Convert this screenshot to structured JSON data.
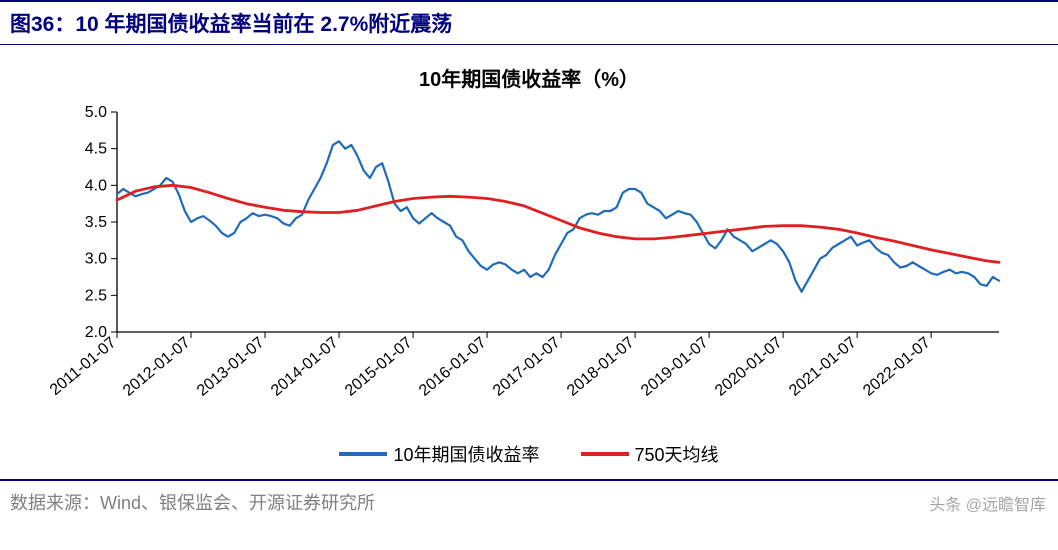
{
  "header": {
    "title": "图36：10 年期国债收益率当前在 2.7%附近震荡"
  },
  "chart": {
    "type": "line",
    "title": "10年期国债收益率（%）",
    "title_fontsize": 20,
    "background_color": "#ffffff",
    "axis_color": "#000000",
    "axis_width": 1.3,
    "ylabel": "",
    "ylim": [
      2.0,
      5.0
    ],
    "yticks": [
      2.0,
      2.5,
      3.0,
      3.5,
      4.0,
      4.5,
      5.0
    ],
    "ytick_labels": [
      "2.0",
      "2.5",
      "3.0",
      "3.5",
      "4.0",
      "4.5",
      "5.0"
    ],
    "xticks": [
      0,
      12,
      24,
      36,
      48,
      60,
      72,
      84,
      96,
      108,
      120,
      132
    ],
    "xtick_labels": [
      "2011-01-07",
      "2012-01-07",
      "2013-01-07",
      "2014-01-07",
      "2015-01-07",
      "2016-01-07",
      "2017-01-07",
      "2018-01-07",
      "2019-01-07",
      "2020-01-07",
      "2021-01-07",
      "2022-01-07"
    ],
    "xlim": [
      0,
      143
    ],
    "tick_fontsize": 16,
    "series": [
      {
        "name": "10年期国债收益率",
        "color": "#1f6bb8",
        "line_width": 2.2,
        "data": [
          [
            0,
            3.88
          ],
          [
            1,
            3.95
          ],
          [
            2,
            3.9
          ],
          [
            3,
            3.85
          ],
          [
            4,
            3.88
          ],
          [
            5,
            3.9
          ],
          [
            6,
            3.95
          ],
          [
            7,
            4.0
          ],
          [
            8,
            4.1
          ],
          [
            9,
            4.05
          ],
          [
            10,
            3.88
          ],
          [
            11,
            3.65
          ],
          [
            12,
            3.5
          ],
          [
            13,
            3.55
          ],
          [
            14,
            3.58
          ],
          [
            15,
            3.52
          ],
          [
            16,
            3.45
          ],
          [
            17,
            3.35
          ],
          [
            18,
            3.3
          ],
          [
            19,
            3.35
          ],
          [
            20,
            3.5
          ],
          [
            21,
            3.55
          ],
          [
            22,
            3.62
          ],
          [
            23,
            3.58
          ],
          [
            24,
            3.6
          ],
          [
            25,
            3.58
          ],
          [
            26,
            3.55
          ],
          [
            27,
            3.48
          ],
          [
            28,
            3.45
          ],
          [
            29,
            3.55
          ],
          [
            30,
            3.6
          ],
          [
            31,
            3.8
          ],
          [
            32,
            3.95
          ],
          [
            33,
            4.1
          ],
          [
            34,
            4.3
          ],
          [
            35,
            4.55
          ],
          [
            36,
            4.6
          ],
          [
            37,
            4.5
          ],
          [
            38,
            4.55
          ],
          [
            39,
            4.4
          ],
          [
            40,
            4.2
          ],
          [
            41,
            4.1
          ],
          [
            42,
            4.25
          ],
          [
            43,
            4.3
          ],
          [
            44,
            4.05
          ],
          [
            45,
            3.75
          ],
          [
            46,
            3.65
          ],
          [
            47,
            3.7
          ],
          [
            48,
            3.55
          ],
          [
            49,
            3.48
          ],
          [
            50,
            3.55
          ],
          [
            51,
            3.62
          ],
          [
            52,
            3.55
          ],
          [
            53,
            3.5
          ],
          [
            54,
            3.45
          ],
          [
            55,
            3.3
          ],
          [
            56,
            3.25
          ],
          [
            57,
            3.1
          ],
          [
            58,
            3.0
          ],
          [
            59,
            2.9
          ],
          [
            60,
            2.85
          ],
          [
            61,
            2.92
          ],
          [
            62,
            2.95
          ],
          [
            63,
            2.92
          ],
          [
            64,
            2.85
          ],
          [
            65,
            2.8
          ],
          [
            66,
            2.85
          ],
          [
            67,
            2.75
          ],
          [
            68,
            2.8
          ],
          [
            69,
            2.75
          ],
          [
            70,
            2.85
          ],
          [
            71,
            3.05
          ],
          [
            72,
            3.2
          ],
          [
            73,
            3.35
          ],
          [
            74,
            3.4
          ],
          [
            75,
            3.55
          ],
          [
            76,
            3.6
          ],
          [
            77,
            3.62
          ],
          [
            78,
            3.6
          ],
          [
            79,
            3.65
          ],
          [
            80,
            3.65
          ],
          [
            81,
            3.7
          ],
          [
            82,
            3.9
          ],
          [
            83,
            3.95
          ],
          [
            84,
            3.95
          ],
          [
            85,
            3.9
          ],
          [
            86,
            3.75
          ],
          [
            87,
            3.7
          ],
          [
            88,
            3.65
          ],
          [
            89,
            3.55
          ],
          [
            90,
            3.6
          ],
          [
            91,
            3.65
          ],
          [
            92,
            3.62
          ],
          [
            93,
            3.6
          ],
          [
            94,
            3.5
          ],
          [
            95,
            3.35
          ],
          [
            96,
            3.2
          ],
          [
            97,
            3.14
          ],
          [
            98,
            3.25
          ],
          [
            99,
            3.4
          ],
          [
            100,
            3.3
          ],
          [
            101,
            3.25
          ],
          [
            102,
            3.2
          ],
          [
            103,
            3.1
          ],
          [
            104,
            3.15
          ],
          [
            105,
            3.2
          ],
          [
            106,
            3.25
          ],
          [
            107,
            3.2
          ],
          [
            108,
            3.1
          ],
          [
            109,
            2.95
          ],
          [
            110,
            2.7
          ],
          [
            111,
            2.55
          ],
          [
            112,
            2.7
          ],
          [
            113,
            2.85
          ],
          [
            114,
            3.0
          ],
          [
            115,
            3.05
          ],
          [
            116,
            3.15
          ],
          [
            117,
            3.2
          ],
          [
            118,
            3.25
          ],
          [
            119,
            3.3
          ],
          [
            120,
            3.18
          ],
          [
            121,
            3.22
          ],
          [
            122,
            3.25
          ],
          [
            123,
            3.15
          ],
          [
            124,
            3.08
          ],
          [
            125,
            3.05
          ],
          [
            126,
            2.95
          ],
          [
            127,
            2.88
          ],
          [
            128,
            2.9
          ],
          [
            129,
            2.95
          ],
          [
            130,
            2.9
          ],
          [
            131,
            2.85
          ],
          [
            132,
            2.8
          ],
          [
            133,
            2.78
          ],
          [
            134,
            2.82
          ],
          [
            135,
            2.85
          ],
          [
            136,
            2.8
          ],
          [
            137,
            2.82
          ],
          [
            138,
            2.8
          ],
          [
            139,
            2.75
          ],
          [
            140,
            2.65
          ],
          [
            141,
            2.63
          ],
          [
            142,
            2.75
          ],
          [
            143,
            2.7
          ]
        ]
      },
      {
        "name": "750天均线",
        "color": "#e02020",
        "line_width": 2.8,
        "data": [
          [
            0,
            3.8
          ],
          [
            3,
            3.92
          ],
          [
            6,
            3.98
          ],
          [
            9,
            4.0
          ],
          [
            12,
            3.97
          ],
          [
            15,
            3.9
          ],
          [
            18,
            3.82
          ],
          [
            21,
            3.75
          ],
          [
            24,
            3.7
          ],
          [
            27,
            3.66
          ],
          [
            30,
            3.64
          ],
          [
            33,
            3.63
          ],
          [
            36,
            3.63
          ],
          [
            39,
            3.66
          ],
          [
            42,
            3.72
          ],
          [
            45,
            3.78
          ],
          [
            48,
            3.82
          ],
          [
            51,
            3.84
          ],
          [
            54,
            3.85
          ],
          [
            57,
            3.84
          ],
          [
            60,
            3.82
          ],
          [
            63,
            3.78
          ],
          [
            66,
            3.72
          ],
          [
            69,
            3.62
          ],
          [
            72,
            3.52
          ],
          [
            75,
            3.42
          ],
          [
            78,
            3.35
          ],
          [
            81,
            3.3
          ],
          [
            84,
            3.27
          ],
          [
            87,
            3.27
          ],
          [
            90,
            3.29
          ],
          [
            93,
            3.32
          ],
          [
            96,
            3.35
          ],
          [
            99,
            3.38
          ],
          [
            102,
            3.41
          ],
          [
            105,
            3.44
          ],
          [
            108,
            3.45
          ],
          [
            111,
            3.45
          ],
          [
            114,
            3.43
          ],
          [
            117,
            3.4
          ],
          [
            120,
            3.35
          ],
          [
            123,
            3.29
          ],
          [
            126,
            3.24
          ],
          [
            129,
            3.18
          ],
          [
            132,
            3.12
          ],
          [
            135,
            3.07
          ],
          [
            138,
            3.02
          ],
          [
            141,
            2.97
          ],
          [
            143,
            2.95
          ]
        ]
      }
    ],
    "legend": {
      "position": "bottom",
      "items": [
        {
          "label": "10年期国债收益率",
          "color": "#1f6bb8"
        },
        {
          "label": "750天均线",
          "color": "#e02020"
        }
      ]
    }
  },
  "footer": {
    "source": "数据来源：Wind、银保监会、开源证券研究所",
    "watermark": "头条 @远瞻智库"
  },
  "colors": {
    "header_border": "#000080",
    "header_text": "#000080",
    "footer_text": "#808080"
  }
}
